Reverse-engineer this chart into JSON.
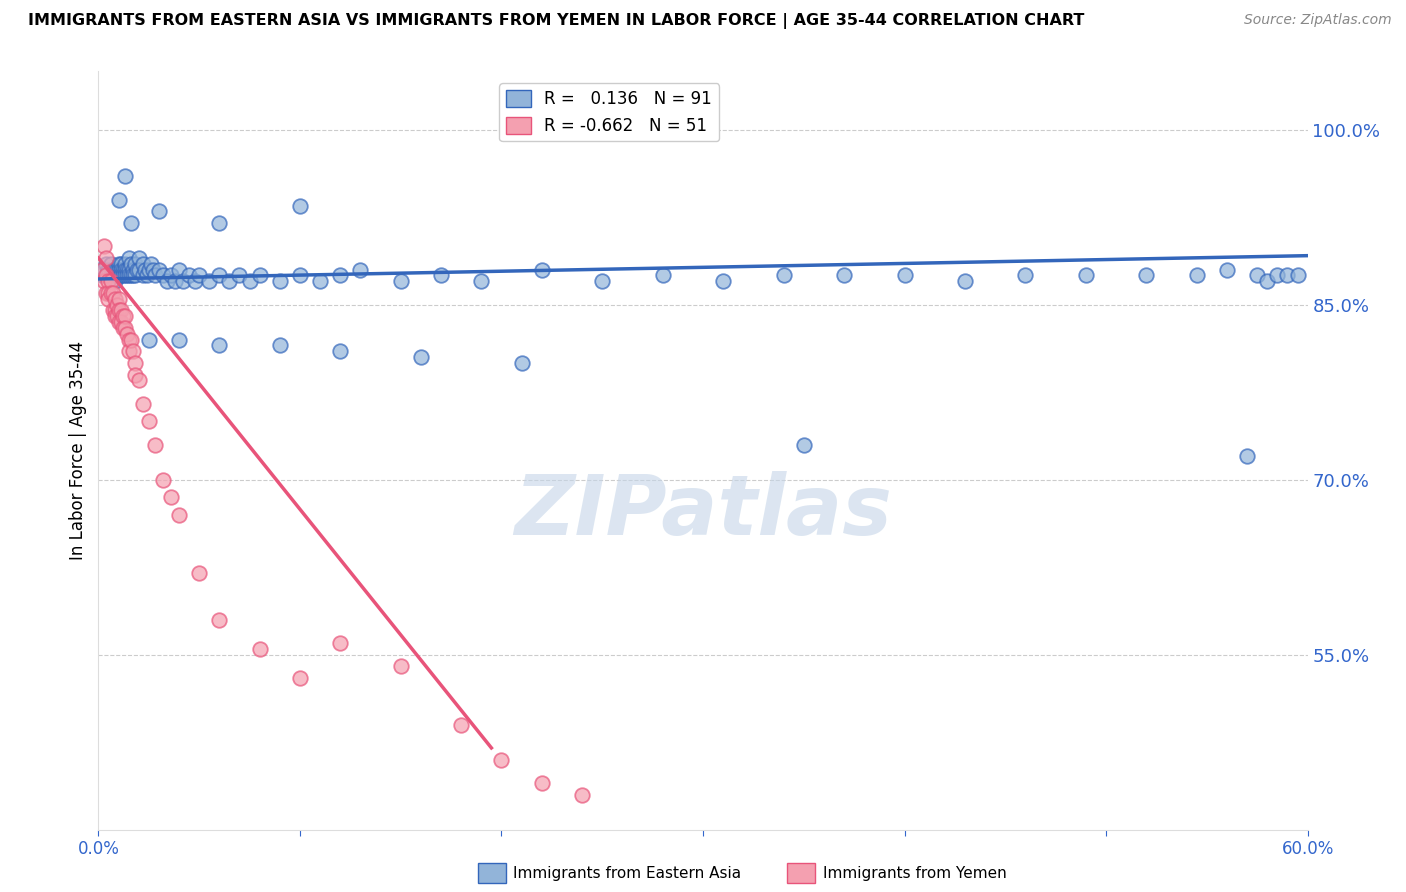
{
  "title": "IMMIGRANTS FROM EASTERN ASIA VS IMMIGRANTS FROM YEMEN IN LABOR FORCE | AGE 35-44 CORRELATION CHART",
  "source": "Source: ZipAtlas.com",
  "ylabel": "In Labor Force | Age 35-44",
  "xmin": 0.0,
  "xmax": 0.6,
  "ymin": 0.4,
  "ymax": 1.05,
  "yticks": [
    0.55,
    0.7,
    0.85,
    1.0
  ],
  "ytick_labels": [
    "55.0%",
    "70.0%",
    "85.0%",
    "100.0%"
  ],
  "blue_R": 0.136,
  "blue_N": 91,
  "pink_R": -0.662,
  "pink_N": 51,
  "blue_color": "#92B4D9",
  "pink_color": "#F4A0B0",
  "blue_line_color": "#3366BB",
  "pink_line_color": "#E8547A",
  "watermark": "ZIPatlas",
  "watermark_color": "#C5D5E8",
  "legend_blue": "Immigrants from Eastern Asia",
  "legend_pink": "Immigrants from Yemen",
  "blue_scatter_x": [
    0.002,
    0.003,
    0.004,
    0.005,
    0.005,
    0.006,
    0.006,
    0.007,
    0.007,
    0.007,
    0.008,
    0.008,
    0.008,
    0.009,
    0.009,
    0.01,
    0.01,
    0.01,
    0.011,
    0.011,
    0.011,
    0.012,
    0.012,
    0.013,
    0.013,
    0.013,
    0.014,
    0.014,
    0.015,
    0.015,
    0.015,
    0.016,
    0.016,
    0.017,
    0.017,
    0.018,
    0.018,
    0.019,
    0.02,
    0.02,
    0.022,
    0.022,
    0.023,
    0.024,
    0.025,
    0.026,
    0.027,
    0.028,
    0.03,
    0.032,
    0.034,
    0.036,
    0.038,
    0.04,
    0.042,
    0.045,
    0.048,
    0.05,
    0.055,
    0.06,
    0.065,
    0.07,
    0.075,
    0.08,
    0.09,
    0.1,
    0.11,
    0.12,
    0.13,
    0.15,
    0.17,
    0.19,
    0.22,
    0.25,
    0.28,
    0.31,
    0.34,
    0.37,
    0.4,
    0.43,
    0.46,
    0.49,
    0.52,
    0.545,
    0.56,
    0.575,
    0.58,
    0.585,
    0.59,
    0.595
  ],
  "blue_scatter_y": [
    0.875,
    0.88,
    0.885,
    0.88,
    0.875,
    0.875,
    0.885,
    0.88,
    0.875,
    0.87,
    0.88,
    0.875,
    0.87,
    0.88,
    0.875,
    0.885,
    0.88,
    0.875,
    0.885,
    0.88,
    0.875,
    0.88,
    0.875,
    0.885,
    0.88,
    0.875,
    0.88,
    0.875,
    0.89,
    0.88,
    0.875,
    0.885,
    0.875,
    0.88,
    0.875,
    0.885,
    0.875,
    0.88,
    0.89,
    0.88,
    0.875,
    0.885,
    0.88,
    0.875,
    0.88,
    0.885,
    0.88,
    0.875,
    0.88,
    0.875,
    0.87,
    0.875,
    0.87,
    0.88,
    0.87,
    0.875,
    0.87,
    0.875,
    0.87,
    0.875,
    0.87,
    0.875,
    0.87,
    0.875,
    0.87,
    0.875,
    0.87,
    0.875,
    0.88,
    0.87,
    0.875,
    0.87,
    0.88,
    0.87,
    0.875,
    0.87,
    0.875,
    0.875,
    0.875,
    0.87,
    0.875,
    0.875,
    0.875,
    0.875,
    0.88,
    0.875,
    0.87,
    0.875,
    0.875,
    0.875
  ],
  "blue_outlier_x": [
    0.01,
    0.013,
    0.016,
    0.03,
    0.06,
    0.1,
    0.35,
    0.57
  ],
  "blue_outlier_y": [
    0.94,
    0.96,
    0.92,
    0.93,
    0.92,
    0.935,
    0.73,
    0.72
  ],
  "blue_low_x": [
    0.025,
    0.04,
    0.06,
    0.09,
    0.12,
    0.16,
    0.21
  ],
  "blue_low_y": [
    0.82,
    0.82,
    0.815,
    0.815,
    0.81,
    0.805,
    0.8
  ],
  "pink_scatter_x": [
    0.002,
    0.003,
    0.003,
    0.004,
    0.004,
    0.004,
    0.005,
    0.005,
    0.005,
    0.006,
    0.006,
    0.007,
    0.007,
    0.008,
    0.008,
    0.008,
    0.009,
    0.009,
    0.01,
    0.01,
    0.01,
    0.011,
    0.011,
    0.012,
    0.012,
    0.013,
    0.013,
    0.014,
    0.015,
    0.015,
    0.016,
    0.017,
    0.018,
    0.018,
    0.02,
    0.022,
    0.025,
    0.028,
    0.032,
    0.036,
    0.04,
    0.05,
    0.06,
    0.08,
    0.1,
    0.12,
    0.15,
    0.18,
    0.2,
    0.22,
    0.24
  ],
  "pink_scatter_y": [
    0.88,
    0.9,
    0.87,
    0.89,
    0.86,
    0.875,
    0.87,
    0.86,
    0.855,
    0.87,
    0.86,
    0.86,
    0.845,
    0.855,
    0.845,
    0.84,
    0.85,
    0.84,
    0.855,
    0.845,
    0.835,
    0.845,
    0.835,
    0.84,
    0.83,
    0.84,
    0.83,
    0.825,
    0.82,
    0.81,
    0.82,
    0.81,
    0.8,
    0.79,
    0.785,
    0.765,
    0.75,
    0.73,
    0.7,
    0.685,
    0.67,
    0.62,
    0.58,
    0.555,
    0.53,
    0.56,
    0.54,
    0.49,
    0.46,
    0.44,
    0.43
  ],
  "blue_trend_x": [
    0.0,
    0.6
  ],
  "blue_trend_y": [
    0.872,
    0.892
  ],
  "pink_trend_x": [
    0.0,
    0.195
  ],
  "pink_trend_y": [
    0.89,
    0.47
  ]
}
